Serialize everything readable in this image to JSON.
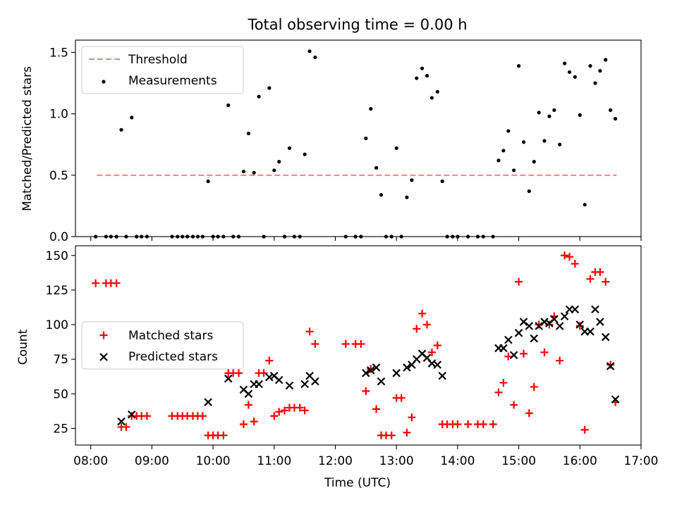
{
  "colors": {
    "threshold": "#ff8080",
    "measurement": "#000000",
    "matched": "#ff0000",
    "predicted": "#000000"
  },
  "chart_data": [
    {
      "type": "scatter",
      "title": "Total observing time = 0.00 h",
      "ylabel": "Matched/Predicted stars",
      "xlabel": "",
      "xlim": [
        7.75,
        17.0
      ],
      "ylim": [
        0,
        1.6
      ],
      "yticks": [
        0,
        0.5,
        1.0,
        1.5
      ],
      "ytick_labels": [
        "0.0",
        "0.5",
        "1.0",
        "1.5"
      ],
      "legend_position": "upper-left",
      "threshold": {
        "name": "Threshold",
        "y": 0.5,
        "x_range": [
          8.1,
          16.6
        ]
      },
      "series": [
        {
          "name": "Measurements",
          "marker": "dot",
          "points": [
            [
              8.08,
              0
            ],
            [
              8.25,
              0
            ],
            [
              8.33,
              0
            ],
            [
              8.42,
              0
            ],
            [
              8.5,
              0.87
            ],
            [
              8.58,
              0
            ],
            [
              8.67,
              0.97
            ],
            [
              8.75,
              0
            ],
            [
              8.83,
              0
            ],
            [
              8.92,
              0
            ],
            [
              9.33,
              0
            ],
            [
              9.42,
              0
            ],
            [
              9.5,
              0
            ],
            [
              9.58,
              0
            ],
            [
              9.67,
              0
            ],
            [
              9.75,
              0
            ],
            [
              9.83,
              0
            ],
            [
              9.92,
              0.45
            ],
            [
              10.0,
              0
            ],
            [
              10.08,
              0
            ],
            [
              10.17,
              0
            ],
            [
              10.25,
              1.07
            ],
            [
              10.33,
              0
            ],
            [
              10.42,
              0
            ],
            [
              10.5,
              0.53
            ],
            [
              10.58,
              0.84
            ],
            [
              10.67,
              0.52
            ],
            [
              10.75,
              1.14
            ],
            [
              10.83,
              0
            ],
            [
              10.92,
              1.21
            ],
            [
              11.0,
              0.54
            ],
            [
              11.08,
              0.61
            ],
            [
              11.17,
              0
            ],
            [
              11.25,
              0.72
            ],
            [
              11.33,
              0
            ],
            [
              11.42,
              0
            ],
            [
              11.5,
              0.67
            ],
            [
              11.58,
              1.51
            ],
            [
              11.67,
              1.46
            ],
            [
              12.17,
              0
            ],
            [
              12.33,
              0
            ],
            [
              12.42,
              0
            ],
            [
              12.5,
              0.8
            ],
            [
              12.58,
              1.04
            ],
            [
              12.67,
              0.56
            ],
            [
              12.75,
              0.34
            ],
            [
              12.83,
              0
            ],
            [
              12.92,
              0
            ],
            [
              13.0,
              0.72
            ],
            [
              13.08,
              0
            ],
            [
              13.17,
              0.32
            ],
            [
              13.25,
              0.46
            ],
            [
              13.33,
              1.29
            ],
            [
              13.42,
              1.37
            ],
            [
              13.5,
              1.31
            ],
            [
              13.58,
              1.13
            ],
            [
              13.67,
              1.18
            ],
            [
              13.75,
              0.45
            ],
            [
              13.83,
              0
            ],
            [
              13.92,
              0
            ],
            [
              14.0,
              0
            ],
            [
              14.17,
              0
            ],
            [
              14.33,
              0
            ],
            [
              14.42,
              0
            ],
            [
              14.58,
              0
            ],
            [
              14.67,
              0.62
            ],
            [
              14.75,
              0.7
            ],
            [
              14.83,
              0.86
            ],
            [
              14.92,
              0.54
            ],
            [
              15.0,
              1.39
            ],
            [
              15.08,
              0.77
            ],
            [
              15.17,
              0.37
            ],
            [
              15.25,
              0.61
            ],
            [
              15.33,
              1.01
            ],
            [
              15.42,
              0.78
            ],
            [
              15.5,
              0.98
            ],
            [
              15.58,
              1.03
            ],
            [
              15.67,
              0.75
            ],
            [
              15.75,
              1.41
            ],
            [
              15.83,
              1.34
            ],
            [
              15.92,
              1.3
            ],
            [
              16.0,
              0.99
            ],
            [
              16.08,
              0.26
            ],
            [
              16.17,
              1.39
            ],
            [
              16.25,
              1.25
            ],
            [
              16.33,
              1.35
            ],
            [
              16.42,
              1.44
            ],
            [
              16.5,
              1.03
            ],
            [
              16.58,
              0.96
            ]
          ]
        }
      ]
    },
    {
      "type": "scatter",
      "title": "",
      "xlabel": "Time (UTC)",
      "ylabel": "Count",
      "xlim": [
        7.75,
        17.0
      ],
      "ylim": [
        13,
        157
      ],
      "xticks": [
        8,
        9,
        10,
        11,
        12,
        13,
        14,
        15,
        16,
        17
      ],
      "xtick_labels": [
        "08:00",
        "09:00",
        "10:00",
        "11:00",
        "12:00",
        "13:00",
        "14:00",
        "15:00",
        "16:00",
        "17:00"
      ],
      "yticks": [
        25,
        50,
        75,
        100,
        125,
        150
      ],
      "ytick_labels": [
        "25",
        "50",
        "75",
        "100",
        "125",
        "150"
      ],
      "legend_position": "center-left",
      "series": [
        {
          "name": "Matched stars",
          "marker": "plus",
          "points": [
            [
              8.08,
              130
            ],
            [
              8.25,
              130
            ],
            [
              8.33,
              130
            ],
            [
              8.42,
              130
            ],
            [
              8.5,
              26
            ],
            [
              8.58,
              26
            ],
            [
              8.67,
              34
            ],
            [
              8.75,
              34
            ],
            [
              8.83,
              34
            ],
            [
              8.92,
              34
            ],
            [
              9.33,
              34
            ],
            [
              9.42,
              34
            ],
            [
              9.5,
              34
            ],
            [
              9.58,
              34
            ],
            [
              9.67,
              34
            ],
            [
              9.75,
              34
            ],
            [
              9.83,
              34
            ],
            [
              9.92,
              20
            ],
            [
              10.0,
              20
            ],
            [
              10.08,
              20
            ],
            [
              10.17,
              20
            ],
            [
              10.25,
              65
            ],
            [
              10.33,
              65
            ],
            [
              10.42,
              65
            ],
            [
              10.5,
              28
            ],
            [
              10.58,
              42
            ],
            [
              10.67,
              30
            ],
            [
              10.75,
              65
            ],
            [
              10.83,
              65
            ],
            [
              10.92,
              74
            ],
            [
              11.0,
              34
            ],
            [
              11.08,
              37
            ],
            [
              11.17,
              38
            ],
            [
              11.25,
              40
            ],
            [
              11.33,
              40
            ],
            [
              11.42,
              40
            ],
            [
              11.5,
              38
            ],
            [
              11.58,
              95
            ],
            [
              11.67,
              86
            ],
            [
              12.17,
              86
            ],
            [
              12.33,
              86
            ],
            [
              12.42,
              86
            ],
            [
              12.5,
              52
            ],
            [
              12.58,
              68
            ],
            [
              12.67,
              39
            ],
            [
              12.75,
              20
            ],
            [
              12.83,
              20
            ],
            [
              12.92,
              20
            ],
            [
              13.0,
              47
            ],
            [
              13.08,
              47
            ],
            [
              13.17,
              22
            ],
            [
              13.25,
              33
            ],
            [
              13.33,
              97
            ],
            [
              13.42,
              108
            ],
            [
              13.5,
              100
            ],
            [
              13.58,
              80
            ],
            [
              13.67,
              85
            ],
            [
              13.75,
              28
            ],
            [
              13.83,
              28
            ],
            [
              13.92,
              28
            ],
            [
              14.0,
              28
            ],
            [
              14.17,
              28
            ],
            [
              14.33,
              28
            ],
            [
              14.42,
              28
            ],
            [
              14.58,
              28
            ],
            [
              14.67,
              51
            ],
            [
              14.75,
              58
            ],
            [
              14.83,
              77
            ],
            [
              14.92,
              42
            ],
            [
              15.0,
              131
            ],
            [
              15.08,
              79
            ],
            [
              15.17,
              36
            ],
            [
              15.25,
              55
            ],
            [
              15.33,
              100
            ],
            [
              15.42,
              80
            ],
            [
              15.5,
              100
            ],
            [
              15.58,
              106
            ],
            [
              15.67,
              74
            ],
            [
              15.75,
              150
            ],
            [
              15.83,
              149
            ],
            [
              15.92,
              144
            ],
            [
              16.0,
              99
            ],
            [
              16.08,
              24
            ],
            [
              16.17,
              133
            ],
            [
              16.25,
              138
            ],
            [
              16.33,
              138
            ],
            [
              16.42,
              131
            ],
            [
              16.5,
              71
            ],
            [
              16.58,
              44
            ]
          ]
        },
        {
          "name": "Predicted stars",
          "marker": "x",
          "points": [
            [
              8.5,
              30
            ],
            [
              8.67,
              35
            ],
            [
              9.92,
              44
            ],
            [
              10.25,
              61
            ],
            [
              10.5,
              53
            ],
            [
              10.58,
              50
            ],
            [
              10.67,
              57
            ],
            [
              10.75,
              57
            ],
            [
              10.92,
              62
            ],
            [
              11.0,
              63
            ],
            [
              11.08,
              60
            ],
            [
              11.25,
              56
            ],
            [
              11.5,
              57
            ],
            [
              11.58,
              63
            ],
            [
              11.67,
              59
            ],
            [
              12.5,
              65
            ],
            [
              12.58,
              67
            ],
            [
              12.67,
              69
            ],
            [
              12.75,
              59
            ],
            [
              13.0,
              65
            ],
            [
              13.17,
              69
            ],
            [
              13.25,
              71
            ],
            [
              13.33,
              75
            ],
            [
              13.42,
              79
            ],
            [
              13.5,
              76
            ],
            [
              13.58,
              72
            ],
            [
              13.67,
              71
            ],
            [
              13.75,
              63
            ],
            [
              14.67,
              83
            ],
            [
              14.75,
              83
            ],
            [
              14.83,
              89
            ],
            [
              14.92,
              78
            ],
            [
              15.0,
              94
            ],
            [
              15.08,
              102
            ],
            [
              15.17,
              99
            ],
            [
              15.25,
              90
            ],
            [
              15.33,
              99
            ],
            [
              15.42,
              102
            ],
            [
              15.5,
              101
            ],
            [
              15.58,
              104
            ],
            [
              15.67,
              99
            ],
            [
              15.75,
              106
            ],
            [
              15.83,
              111
            ],
            [
              15.92,
              111
            ],
            [
              16.0,
              100
            ],
            [
              16.08,
              95
            ],
            [
              16.17,
              95
            ],
            [
              16.25,
              111
            ],
            [
              16.33,
              102
            ],
            [
              16.42,
              91
            ],
            [
              16.5,
              70
            ],
            [
              16.58,
              46
            ]
          ]
        }
      ]
    }
  ]
}
